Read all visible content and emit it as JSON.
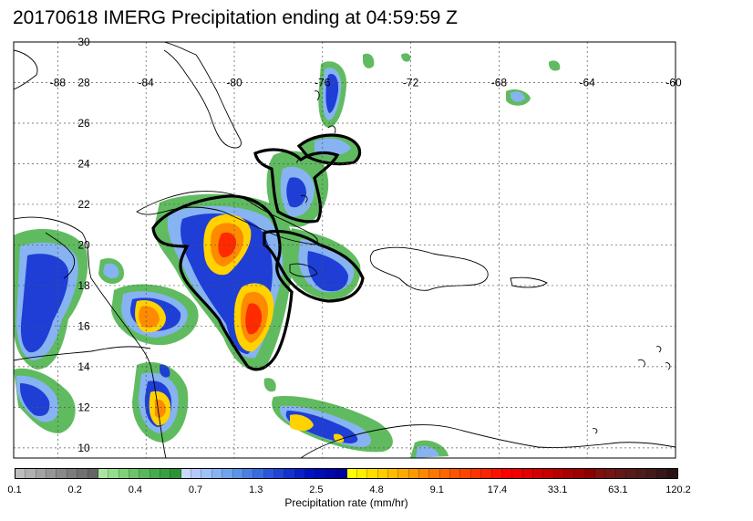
{
  "title": "20170618 IMERG Precipitation ending at 04:59:59 Z",
  "map": {
    "lon_labels": [
      "-88",
      "-84",
      "-80",
      "-76",
      "-72",
      "-68",
      "-64",
      "-60"
    ],
    "lat_labels": [
      "30",
      "28",
      "26",
      "24",
      "22",
      "20",
      "18",
      "16",
      "14",
      "12",
      "10"
    ],
    "lon_range": [
      -90,
      -60
    ],
    "lat_range": [
      9.5,
      30
    ],
    "grid": true
  },
  "colorbar": {
    "label": "Precipitation rate (mm/hr)",
    "tick_labels": [
      "0.1",
      "0.2",
      "0.4",
      "0.7",
      "1.3",
      "2.5",
      "4.8",
      "9.1",
      "17.4",
      "33.1",
      "63.1",
      "120.2"
    ],
    "colors": [
      "#bdbdbd",
      "#b0b0b0",
      "#a3a3a3",
      "#969696",
      "#898989",
      "#7c7c7c",
      "#707070",
      "#656565",
      "#a8e6a0",
      "#93dd8c",
      "#7fd178",
      "#6bc467",
      "#58b858",
      "#46ab4b",
      "#39a040",
      "#2c9436",
      "#c8d8ff",
      "#b4c8ff",
      "#9ec2f7",
      "#87b3f2",
      "#70a4ee",
      "#5a93ea",
      "#4a80e6",
      "#3a6ce0",
      "#2c57dc",
      "#2045d6",
      "#1432d0",
      "#0a20ca",
      "#0012c2",
      "#000cb5",
      "#0006a8",
      "#00029c",
      "#ffff00",
      "#ffee00",
      "#ffdd00",
      "#ffcc00",
      "#ffbb00",
      "#ffaa00",
      "#ff9900",
      "#ff8800",
      "#ff7700",
      "#ff6600",
      "#ff5500",
      "#ff4400",
      "#ff3300",
      "#ff2200",
      "#ff1100",
      "#ff0000",
      "#f00000",
      "#e20000",
      "#d40000",
      "#c60000",
      "#b80000",
      "#aa0000",
      "#9c0000",
      "#8e0000",
      "#801010",
      "#731515",
      "#661818",
      "#5a1a1a",
      "#4e1b1b",
      "#421a1a",
      "#371717",
      "#2c1212"
    ]
  },
  "legend_colors": {
    "green": "#58b858",
    "light_blue": "#87b3f2",
    "blue": "#1e3ed6",
    "yellow": "#ffd200",
    "orange": "#ff8a00",
    "red": "#ff2a00",
    "outline": "#000000"
  }
}
